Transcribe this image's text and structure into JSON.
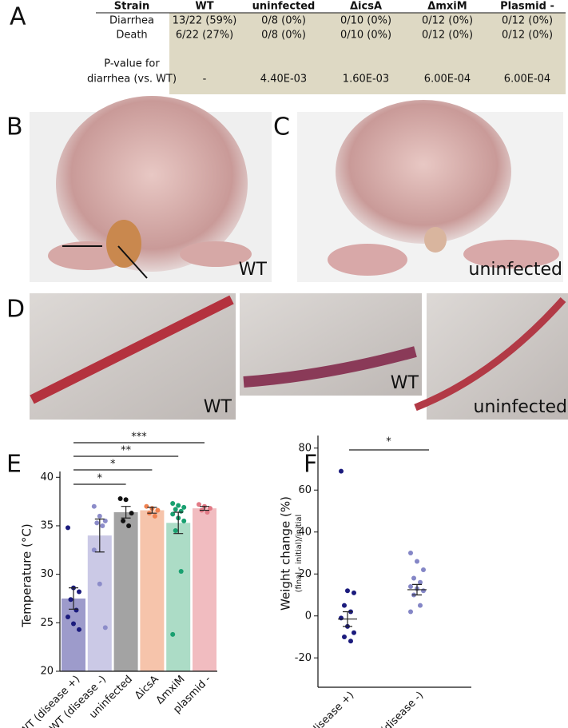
{
  "panel_labels": [
    "A",
    "B",
    "C",
    "D",
    "E",
    "F"
  ],
  "table": {
    "header": [
      "Strain",
      "WT",
      "uninfected",
      "ΔicsA",
      "ΔmxiM",
      "Plasmid -"
    ],
    "rows": [
      {
        "label": [
          "Diarrhea"
        ],
        "cells": [
          "13/22 (59%)",
          "0/8 (0%)",
          "0/10 (0%)",
          "0/12 (0%)",
          "0/12 (0%)"
        ]
      },
      {
        "label": [
          "Death"
        ],
        "cells": [
          "6/22 (27%)",
          "0/8 (0%)",
          "0/10 (0%)",
          "0/12 (0%)",
          "0/12 (0%)"
        ]
      },
      {
        "label": [
          "P-value for",
          "diarrhea (vs. WT)"
        ],
        "cells": [
          "-",
          "4.40E-03",
          "1.60E-03",
          "6.00E-04",
          "6.00E-04"
        ]
      }
    ]
  },
  "photo_captions": {
    "b": "WT",
    "c": "uninfected",
    "d": [
      "WT",
      "WT",
      "uninfected"
    ]
  },
  "chart_data": [
    {
      "type": "bar",
      "y_label": "Temperature (°C)",
      "categories": [
        "WT (disease +)",
        "WT (disease -)",
        "uninfected",
        "ΔicsA",
        "ΔmxiM",
        "plasmid -"
      ],
      "values": [
        27.5,
        34,
        36.4,
        36.6,
        35.3,
        36.8
      ],
      "errors": [
        1.1,
        1.7,
        0.6,
        0.3,
        1.1,
        0.2
      ],
      "points": [
        [
          34.8,
          28.6,
          28.2,
          27.4,
          26.3,
          25.6,
          24.9,
          24.3
        ],
        [
          37,
          36,
          35.5,
          35.3,
          35,
          32.5,
          29,
          24.5
        ],
        [
          37.8,
          37.7,
          36.3,
          35.5,
          35
        ],
        [
          37,
          36.8,
          36.6,
          36.3,
          36
        ],
        [
          37.3,
          37.1,
          36.9,
          36.7,
          36.5,
          36.2,
          35.8,
          35.5,
          34.5,
          30.3,
          23.8
        ],
        [
          37.2,
          37,
          36.8,
          36.6,
          36.4
        ]
      ],
      "colors": [
        "#9d9bcb",
        "#cbc9e6",
        "#a3a3a3",
        "#f6c4ab",
        "#acdcc6",
        "#f1bcc0"
      ],
      "point_colors": [
        "#1b1b7d",
        "#8c8cc9",
        "#111111",
        "#ef8150",
        "#19a070",
        "#e27a86"
      ],
      "ylim": [
        20,
        40.6
      ],
      "yticks": [
        20,
        25,
        30,
        35,
        40
      ],
      "annotations": [
        {
          "label": "***",
          "from": 0,
          "to": 5
        },
        {
          "label": "**",
          "from": 0,
          "to": 4
        },
        {
          "label": "*",
          "from": 0,
          "to": 3
        },
        {
          "label": "*",
          "from": 0,
          "to": 2
        }
      ]
    },
    {
      "type": "scatter",
      "y_label": "Weight change (%)",
      "y_sublabel": "(final - initial)/initial",
      "categories": [
        "WT (disease +)",
        "WT (disease -)"
      ],
      "points": [
        [
          69,
          12,
          11,
          5,
          2,
          -1,
          -5,
          -8,
          -10,
          -12
        ],
        [
          30,
          26,
          22,
          18,
          16,
          14,
          13,
          12,
          10,
          5,
          2
        ]
      ],
      "values": [
        -1.5,
        12.5
      ],
      "errors": [
        3.5,
        2.5
      ],
      "point_colors": [
        "#1b1b7d",
        "#8486c6"
      ],
      "ylim": [
        -34,
        86
      ],
      "yticks": [
        -20,
        0,
        20,
        40,
        60,
        80
      ],
      "annotations": [
        {
          "label": "*",
          "from": 0,
          "to": 1
        }
      ]
    }
  ]
}
